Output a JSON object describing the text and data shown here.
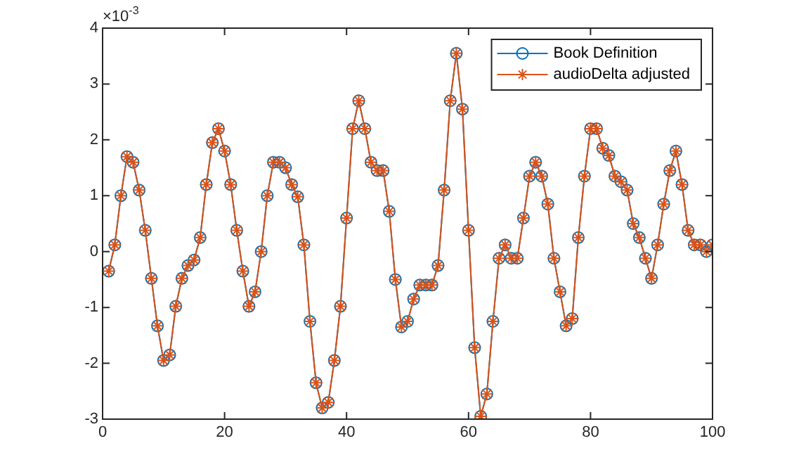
{
  "chart_data": {
    "type": "line",
    "x": [
      1,
      2,
      3,
      4,
      5,
      6,
      7,
      8,
      9,
      10,
      11,
      12,
      13,
      14,
      15,
      16,
      17,
      18,
      19,
      20,
      21,
      22,
      23,
      24,
      25,
      26,
      27,
      28,
      29,
      30,
      31,
      32,
      33,
      34,
      35,
      36,
      37,
      38,
      39,
      40,
      41,
      42,
      43,
      44,
      45,
      46,
      47,
      48,
      49,
      50,
      51,
      52,
      53,
      54,
      55,
      56,
      57,
      58,
      59,
      60,
      61,
      62,
      63,
      64,
      65,
      66,
      67,
      68,
      69,
      70,
      71,
      72,
      73,
      74,
      75,
      76,
      77,
      78,
      79,
      80,
      81,
      82,
      83,
      84,
      85,
      86,
      87,
      88,
      89,
      90,
      91,
      92,
      93,
      94,
      95,
      96,
      97,
      98,
      99,
      100
    ],
    "series": [
      {
        "name": "Book Definition",
        "color": "#0072bd",
        "marker": "circle",
        "values": [
          -0.35,
          0.12,
          1.0,
          1.7,
          1.6,
          1.1,
          0.38,
          -0.48,
          -1.33,
          -1.95,
          -1.85,
          -0.98,
          -0.48,
          -0.25,
          -0.15,
          0.25,
          1.2,
          1.95,
          2.2,
          1.8,
          1.2,
          0.38,
          -0.35,
          -0.98,
          -0.72,
          0.0,
          1.0,
          1.6,
          1.6,
          1.5,
          1.2,
          0.98,
          0.12,
          -1.25,
          -2.35,
          -2.8,
          -2.7,
          -1.95,
          -0.98,
          0.6,
          2.2,
          2.7,
          2.2,
          1.6,
          1.45,
          1.45,
          0.72,
          -0.5,
          -1.35,
          -1.25,
          -0.85,
          -0.6,
          -0.6,
          -0.6,
          -0.25,
          1.1,
          2.7,
          3.55,
          2.55,
          0.38,
          -1.72,
          -2.95,
          -2.55,
          -1.25,
          -0.12,
          0.12,
          -0.12,
          -0.12,
          0.6,
          1.35,
          1.6,
          1.35,
          0.85,
          -0.12,
          -0.72,
          -1.33,
          -1.2,
          0.25,
          1.35,
          2.2,
          2.2,
          1.85,
          1.72,
          1.35,
          1.25,
          1.1,
          0.5,
          0.25,
          -0.12,
          -0.48,
          0.12,
          0.85,
          1.45,
          1.8,
          1.2,
          0.38,
          0.12,
          0.12,
          0.0,
          0.12
        ]
      },
      {
        "name": "audioDelta adjusted",
        "color": "#d95319",
        "marker": "cross",
        "values": [
          -0.35,
          0.12,
          1.0,
          1.7,
          1.6,
          1.1,
          0.38,
          -0.48,
          -1.33,
          -1.95,
          -1.85,
          -0.98,
          -0.48,
          -0.25,
          -0.15,
          0.25,
          1.2,
          1.95,
          2.2,
          1.8,
          1.2,
          0.38,
          -0.35,
          -0.98,
          -0.72,
          0.0,
          1.0,
          1.6,
          1.6,
          1.5,
          1.2,
          0.98,
          0.12,
          -1.25,
          -2.35,
          -2.8,
          -2.7,
          -1.95,
          -0.98,
          0.6,
          2.2,
          2.7,
          2.2,
          1.6,
          1.45,
          1.45,
          0.72,
          -0.5,
          -1.35,
          -1.25,
          -0.85,
          -0.6,
          -0.6,
          -0.6,
          -0.25,
          1.1,
          2.7,
          3.55,
          2.55,
          0.38,
          -1.72,
          -2.95,
          -2.55,
          -1.25,
          -0.12,
          0.12,
          -0.12,
          -0.12,
          0.6,
          1.35,
          1.6,
          1.35,
          0.85,
          -0.12,
          -0.72,
          -1.33,
          -1.2,
          0.25,
          1.35,
          2.2,
          2.2,
          1.85,
          1.72,
          1.35,
          1.25,
          1.1,
          0.5,
          0.25,
          -0.12,
          -0.48,
          0.12,
          0.85,
          1.45,
          1.8,
          1.2,
          0.38,
          0.12,
          0.12,
          0.0,
          0.12
        ]
      }
    ],
    "xlim": [
      0,
      100
    ],
    "xticks": [
      0,
      20,
      40,
      60,
      80,
      100
    ],
    "ylim": [
      -3,
      4
    ],
    "yticks": [
      -3,
      -2,
      -1,
      0,
      1,
      2,
      3,
      4
    ],
    "annotations": [
      "×10$^{-3}$"
    ],
    "grid": false,
    "legend": "top right",
    "line_style": "solid"
  }
}
